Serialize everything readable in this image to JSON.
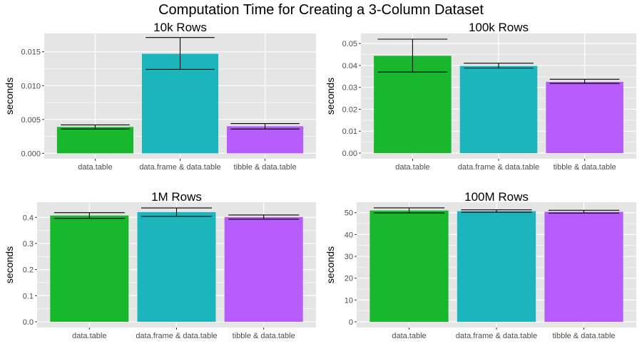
{
  "title": "Computation Time for Creating a 3-Column Dataset",
  "colors": {
    "panel_background": "#e5e5e5",
    "gridline": "#ffffff",
    "errorbar": "#000000",
    "data.table": "#19b72e",
    "data.frame & data.table": "#1bb5bb",
    "tibble & data.table": "#b65cfb"
  },
  "chart_data": [
    {
      "type": "bar",
      "title": "10k Rows",
      "xlabel": "",
      "ylabel": "seconds",
      "categories": [
        "data.table",
        "data.frame & data.table",
        "tibble & data.table"
      ],
      "values": [
        0.0039,
        0.0147,
        0.004
      ],
      "error_low": [
        0.0036,
        0.0124,
        0.0036
      ],
      "error_high": [
        0.0042,
        0.0171,
        0.0044
      ],
      "ylim": [
        -0.0008,
        0.0177
      ],
      "yticks": [
        0,
        0.005,
        0.01,
        0.015
      ],
      "ytick_labels": [
        "0.000",
        "0.005",
        "0.010",
        "0.015"
      ],
      "grid": true,
      "legend": "none"
    },
    {
      "type": "bar",
      "title": "100k Rows",
      "xlabel": "",
      "ylabel": "seconds",
      "categories": [
        "data.table",
        "data.frame & data.table",
        "tibble & data.table"
      ],
      "values": [
        0.0444,
        0.0398,
        0.0325
      ],
      "error_low": [
        0.037,
        0.0388,
        0.0318
      ],
      "error_high": [
        0.052,
        0.041,
        0.0337
      ],
      "ylim": [
        -0.0026,
        0.0546
      ],
      "yticks": [
        0,
        0.01,
        0.02,
        0.03,
        0.04,
        0.05
      ],
      "ytick_labels": [
        "0.00",
        "0.01",
        "0.02",
        "0.03",
        "0.04",
        "0.05"
      ],
      "grid": true,
      "legend": "none"
    },
    {
      "type": "bar",
      "title": "1M Rows",
      "xlabel": "",
      "ylabel": "seconds",
      "categories": [
        "data.table",
        "data.frame & data.table",
        "tibble & data.table"
      ],
      "values": [
        0.407,
        0.42,
        0.401
      ],
      "error_low": [
        0.396,
        0.404,
        0.393
      ],
      "error_high": [
        0.418,
        0.436,
        0.409
      ],
      "ylim": [
        -0.022,
        0.458
      ],
      "yticks": [
        0,
        0.1,
        0.2,
        0.3,
        0.4
      ],
      "ytick_labels": [
        "0.0",
        "0.1",
        "0.2",
        "0.3",
        "0.4"
      ],
      "grid": true,
      "legend": "none"
    },
    {
      "type": "bar",
      "title": "100M Rows",
      "xlabel": "",
      "ylabel": "seconds",
      "categories": [
        "data.table",
        "data.frame & data.table",
        "tibble & data.table"
      ],
      "values": [
        51,
        50.7,
        50.4
      ],
      "error_low": [
        49.9,
        50.2,
        49.8
      ],
      "error_high": [
        52.2,
        51.3,
        51.1
      ],
      "ylim": [
        -2.6,
        54.8
      ],
      "yticks": [
        0,
        10,
        20,
        30,
        40,
        50
      ],
      "ytick_labels": [
        "0",
        "10",
        "20",
        "30",
        "40",
        "50"
      ],
      "grid": true,
      "legend": "none"
    }
  ]
}
